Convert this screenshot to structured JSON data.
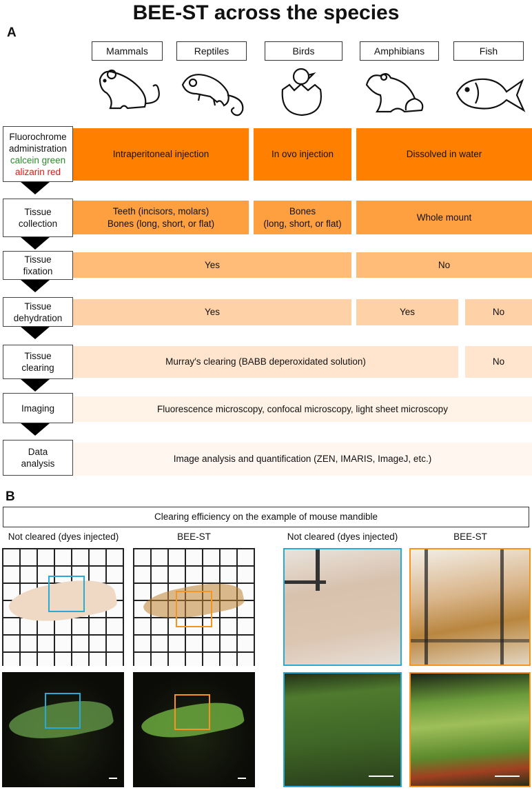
{
  "title": "BEE-ST across the species",
  "panel_a": {
    "label": "A",
    "species": [
      "Mammals",
      "Reptiles",
      "Birds",
      "Amphibians",
      "Fish"
    ],
    "icons": [
      "mouse-icon",
      "chameleon-icon",
      "hatching-chick-icon",
      "frog-icon",
      "fish-icon"
    ],
    "steps": [
      {
        "l1": "Fluorochrome",
        "l2": "administration",
        "dye1": "calcein  green",
        "dye2": "alizarin  red"
      },
      {
        "l1": "Tissue",
        "l2": "collection"
      },
      {
        "l1": "Tissue",
        "l2": "fixation"
      },
      {
        "l1": "Tissue",
        "l2": "dehydration"
      },
      {
        "l1": "Tissue",
        "l2": "clearing"
      },
      {
        "l1": "Imaging"
      },
      {
        "l1": "Data",
        "l2": "analysis"
      }
    ],
    "rows": {
      "admin": [
        "Intraperitoneal injection",
        "In ovo injection",
        "Dissolved in water"
      ],
      "collection": [
        [
          "Teeth (incisors, molars)",
          "Bones (long, short, or flat)"
        ],
        [
          "Bones",
          "(long, short, or flat)"
        ],
        "Whole mount"
      ],
      "fixation": [
        "Yes",
        "No"
      ],
      "dehydration": [
        "Yes",
        "Yes",
        "No"
      ],
      "clearing": [
        "Murray′s clearing (BABB deperoxidated solution)",
        "No"
      ],
      "imaging": "Fluorescence microscopy,  confocal microscopy,  light sheet microscopy",
      "analysis": "Image analysis and quantification (ZEN, IMARIS, ImageJ, etc.)"
    },
    "colors": {
      "row1": "#ff8000",
      "row2": "#ffa040",
      "row3": "#ffbb78",
      "row4": "#ffd1a6",
      "row5": "#ffe5cd",
      "row6": "#fff2e6",
      "row7": "#fff6ef",
      "calcein": "#2a8a2a",
      "alizarin": "#ee1111"
    }
  },
  "panel_b": {
    "label": "B",
    "header": "Clearing efficiency on the example of mouse mandible",
    "captions": [
      "Not cleared (dyes injected)",
      "BEE-ST",
      "Not cleared (dyes injected)",
      "BEE-ST"
    ],
    "colors": {
      "not_cleared_frame": "#29a9d6",
      "bee_st_frame": "#f7941d"
    }
  }
}
